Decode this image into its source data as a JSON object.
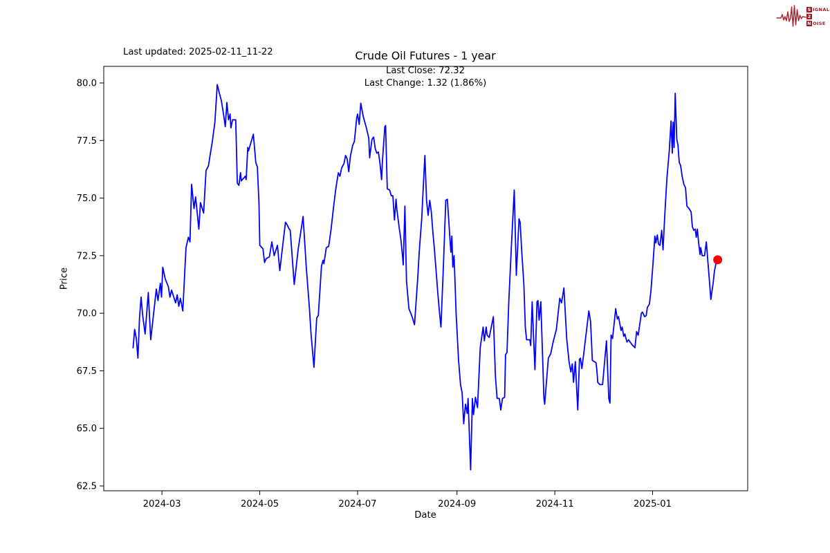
{
  "header": {
    "last_updated": "Last updated: 2025-02-11_11-22"
  },
  "logo": {
    "row1_boxed": "S",
    "row1_rest": "IGNAL",
    "row2_boxed": "2",
    "row2_rest": "",
    "row3_boxed": "N",
    "row3_rest": "OISE",
    "color": "#a01828",
    "waveform_color": "#b22535"
  },
  "chart_data": {
    "type": "line",
    "title": "Crude Oil Futures - 1 year",
    "annotation_line1": "Last Close: 72.32",
    "annotation_line2": "Last Change: 1.32 (1.86%)",
    "xlabel": "Date",
    "ylabel": "Price",
    "last_close": 72.32,
    "last_change": 1.32,
    "last_change_pct": "1.86%",
    "grid": false,
    "legend": null,
    "line_color": "#0000ff",
    "marker_color": "#ff0000",
    "x_unit": "days since 2024-02-12",
    "x_start_date": "2024-02-12",
    "x_end_date": "2025-02-11",
    "xlim": [
      -18.3,
      383.3
    ],
    "ylim": [
      62.29,
      80.72
    ],
    "y_ticks": [
      80.0,
      77.5,
      75.0,
      72.5,
      70.0,
      67.5,
      65.0,
      62.5
    ],
    "x_ticks": [
      {
        "day": 18,
        "label": "2024-03"
      },
      {
        "day": 79,
        "label": "2024-05"
      },
      {
        "day": 140,
        "label": "2024-07"
      },
      {
        "day": 202,
        "label": "2024-09"
      },
      {
        "day": 263,
        "label": "2024-11"
      },
      {
        "day": 324,
        "label": "2025-01"
      }
    ],
    "series": [
      {
        "name": "Crude Oil Futures",
        "points": [
          [
            0,
            68.5
          ],
          [
            1,
            69.3
          ],
          [
            2,
            68.9
          ],
          [
            3,
            68.05
          ],
          [
            4,
            69.8
          ],
          [
            5,
            70.7
          ],
          [
            6,
            69.9
          ],
          [
            7.5,
            69.1
          ],
          [
            9.5,
            70.9
          ],
          [
            11,
            68.85
          ],
          [
            14.5,
            71.05
          ],
          [
            15.5,
            70.55
          ],
          [
            17,
            71.3
          ],
          [
            17.7,
            70.7
          ],
          [
            18.5,
            72.0
          ],
          [
            20,
            71.5
          ],
          [
            22,
            71.15
          ],
          [
            23,
            70.7
          ],
          [
            24,
            71.0
          ],
          [
            26.5,
            70.45
          ],
          [
            27.5,
            70.8
          ],
          [
            28.5,
            70.3
          ],
          [
            29.5,
            70.65
          ],
          [
            31,
            70.1
          ],
          [
            33,
            72.85
          ],
          [
            34.5,
            73.3
          ],
          [
            35.5,
            73.1
          ],
          [
            36.5,
            75.6
          ],
          [
            38,
            74.55
          ],
          [
            39,
            75.05
          ],
          [
            41,
            73.65
          ],
          [
            42,
            74.8
          ],
          [
            44,
            74.35
          ],
          [
            45.5,
            76.2
          ],
          [
            47,
            76.4
          ],
          [
            48,
            76.85
          ],
          [
            49.5,
            77.5
          ],
          [
            51,
            78.3
          ],
          [
            52.5,
            79.93
          ],
          [
            54,
            79.5
          ],
          [
            55,
            79.25
          ],
          [
            56.5,
            78.6
          ],
          [
            57.5,
            78.1
          ],
          [
            58.5,
            79.15
          ],
          [
            59.5,
            78.4
          ],
          [
            60.5,
            78.65
          ],
          [
            61,
            78.05
          ],
          [
            62,
            78.4
          ],
          [
            64,
            78.4
          ],
          [
            65,
            75.65
          ],
          [
            66,
            75.55
          ],
          [
            67,
            76.1
          ],
          [
            67.5,
            75.75
          ],
          [
            70,
            75.95
          ],
          [
            70.5,
            75.8
          ],
          [
            71.5,
            77.2
          ],
          [
            72,
            77.05
          ],
          [
            75,
            77.77
          ],
          [
            76.5,
            76.55
          ],
          [
            77.5,
            76.35
          ],
          [
            78.5,
            74.8
          ],
          [
            79,
            72.95
          ],
          [
            81,
            72.8
          ],
          [
            82,
            72.2
          ],
          [
            83,
            72.37
          ],
          [
            85,
            72.45
          ],
          [
            86.5,
            73.1
          ],
          [
            88,
            72.5
          ],
          [
            90,
            72.95
          ],
          [
            91.5,
            71.85
          ],
          [
            95,
            73.95
          ],
          [
            96,
            73.85
          ],
          [
            97,
            73.7
          ],
          [
            98,
            73.6
          ],
          [
            100.5,
            71.25
          ],
          [
            103,
            72.8
          ],
          [
            106,
            74.2
          ],
          [
            108,
            72.0
          ],
          [
            110,
            70.2
          ],
          [
            111,
            69.1
          ],
          [
            112.8,
            67.65
          ],
          [
            114.5,
            69.8
          ],
          [
            115.5,
            69.9
          ],
          [
            117.5,
            72.05
          ],
          [
            118.5,
            72.3
          ],
          [
            119,
            72.15
          ],
          [
            120.5,
            72.85
          ],
          [
            122,
            72.9
          ],
          [
            123.5,
            73.65
          ],
          [
            125,
            74.6
          ],
          [
            126.5,
            75.45
          ],
          [
            128,
            76.1
          ],
          [
            129,
            75.95
          ],
          [
            130,
            76.3
          ],
          [
            131.5,
            76.5
          ],
          [
            132.5,
            76.85
          ],
          [
            133.5,
            76.7
          ],
          [
            134.5,
            76.15
          ],
          [
            135.5,
            76.8
          ],
          [
            137,
            77.3
          ],
          [
            138,
            77.45
          ],
          [
            139.5,
            78.5
          ],
          [
            140,
            78.65
          ],
          [
            141,
            78.2
          ],
          [
            142,
            79.12
          ],
          [
            143.5,
            78.55
          ],
          [
            144.5,
            78.3
          ],
          [
            145.5,
            78.05
          ],
          [
            147,
            77.6
          ],
          [
            147.5,
            76.75
          ],
          [
            149,
            77.55
          ],
          [
            150,
            77.65
          ],
          [
            151,
            77.15
          ],
          [
            152,
            76.95
          ],
          [
            153,
            77.0
          ],
          [
            154,
            76.5
          ],
          [
            155,
            75.8
          ],
          [
            155.5,
            76.6
          ],
          [
            157,
            78.1
          ],
          [
            157.5,
            78.15
          ],
          [
            158.5,
            75.4
          ],
          [
            160,
            75.35
          ],
          [
            161,
            75.1
          ],
          [
            162,
            75.1
          ],
          [
            163,
            74.05
          ],
          [
            164,
            74.95
          ],
          [
            164.5,
            74.5
          ],
          [
            166,
            73.7
          ],
          [
            167,
            73.2
          ],
          [
            168,
            72.5
          ],
          [
            168.5,
            72.1
          ],
          [
            169.5,
            74.65
          ],
          [
            170.5,
            71.4
          ],
          [
            172,
            70.2
          ],
          [
            174,
            69.85
          ],
          [
            175.5,
            69.5
          ],
          [
            177.5,
            71.5
          ],
          [
            178.5,
            72.7
          ],
          [
            180,
            74.1
          ],
          [
            181,
            75.5
          ],
          [
            182,
            76.85
          ],
          [
            183,
            74.9
          ],
          [
            184,
            74.25
          ],
          [
            185,
            74.9
          ],
          [
            186,
            74.4
          ],
          [
            187,
            73.5
          ],
          [
            188,
            72.7
          ],
          [
            189,
            71.8
          ],
          [
            190,
            70.9
          ],
          [
            191,
            70.1
          ],
          [
            192,
            69.4
          ],
          [
            193.5,
            72.0
          ],
          [
            195,
            74.9
          ],
          [
            196,
            74.95
          ],
          [
            197.6,
            73.25
          ],
          [
            198.2,
            72.65
          ],
          [
            198.8,
            73.35
          ],
          [
            199.4,
            72.0
          ],
          [
            200.2,
            72.5
          ],
          [
            201.5,
            69.95
          ],
          [
            203,
            67.95
          ],
          [
            204.2,
            66.9
          ],
          [
            205.2,
            66.55
          ],
          [
            206.2,
            65.2
          ],
          [
            207.3,
            66.05
          ],
          [
            208.4,
            65.65
          ],
          [
            208.9,
            66.3
          ],
          [
            210.5,
            63.2
          ],
          [
            211.6,
            66.3
          ],
          [
            212.3,
            65.6
          ],
          [
            213.5,
            66.35
          ],
          [
            214.8,
            65.9
          ],
          [
            216.5,
            68.5
          ],
          [
            218.3,
            69.4
          ],
          [
            219.1,
            68.8
          ],
          [
            220.2,
            69.4
          ],
          [
            220.8,
            69.05
          ],
          [
            222.1,
            68.95
          ],
          [
            224.7,
            69.85
          ],
          [
            226,
            67.25
          ],
          [
            227,
            66.3
          ],
          [
            228.4,
            66.3
          ],
          [
            229.3,
            65.8
          ],
          [
            230.4,
            66.3
          ],
          [
            231.7,
            66.35
          ],
          [
            232.3,
            68.2
          ],
          [
            233.2,
            68.3
          ],
          [
            234.3,
            70.5
          ],
          [
            236,
            73.0
          ],
          [
            237.7,
            75.35
          ],
          [
            239,
            71.65
          ],
          [
            240.7,
            74.1
          ],
          [
            241.4,
            73.95
          ],
          [
            242.4,
            72.65
          ],
          [
            243.7,
            71.25
          ],
          [
            244.6,
            69.4
          ],
          [
            245.4,
            68.85
          ],
          [
            247.4,
            68.85
          ],
          [
            248,
            68.6
          ],
          [
            248.9,
            70.5
          ],
          [
            249.7,
            69.05
          ],
          [
            250.6,
            67.55
          ],
          [
            251.9,
            70.5
          ],
          [
            252.5,
            70.55
          ],
          [
            253.2,
            69.7
          ],
          [
            254.3,
            70.5
          ],
          [
            256.2,
            66.3
          ],
          [
            256.7,
            66.05
          ],
          [
            259,
            68.05
          ],
          [
            260.5,
            68.25
          ],
          [
            261.8,
            68.7
          ],
          [
            264,
            69.3
          ],
          [
            266.1,
            70.65
          ],
          [
            267.2,
            70.45
          ],
          [
            268.7,
            71.1
          ],
          [
            270.4,
            68.9
          ],
          [
            271.9,
            67.9
          ],
          [
            273,
            67.45
          ],
          [
            273.9,
            67.8
          ],
          [
            274.7,
            67.0
          ],
          [
            275.8,
            67.9
          ],
          [
            277.3,
            65.8
          ],
          [
            278.4,
            68.0
          ],
          [
            279,
            68.05
          ],
          [
            279.9,
            67.6
          ],
          [
            281,
            68.2
          ],
          [
            284.2,
            70.1
          ],
          [
            285.3,
            69.65
          ],
          [
            286.4,
            67.95
          ],
          [
            288.7,
            67.85
          ],
          [
            289.2,
            67.55
          ],
          [
            289.8,
            67.0
          ],
          [
            291.1,
            66.9
          ],
          [
            292.8,
            66.9
          ],
          [
            295.2,
            68.8
          ],
          [
            296.7,
            66.3
          ],
          [
            297.4,
            66.1
          ],
          [
            298.1,
            69.05
          ],
          [
            299,
            68.9
          ],
          [
            301,
            70.2
          ],
          [
            302,
            69.75
          ],
          [
            302.7,
            69.85
          ],
          [
            304.3,
            69.25
          ],
          [
            305,
            69.4
          ],
          [
            306,
            69.0
          ],
          [
            306.7,
            69.1
          ],
          [
            308,
            68.75
          ],
          [
            309,
            68.85
          ],
          [
            311,
            68.65
          ],
          [
            313,
            68.5
          ],
          [
            314,
            69.2
          ],
          [
            315,
            69.05
          ],
          [
            317,
            70.0
          ],
          [
            317.7,
            70.05
          ],
          [
            319,
            69.85
          ],
          [
            320,
            69.9
          ],
          [
            320.7,
            70.25
          ],
          [
            322,
            70.4
          ],
          [
            323,
            71.0
          ],
          [
            324.3,
            72.2
          ],
          [
            325.4,
            73.35
          ],
          [
            326,
            73.05
          ],
          [
            326.9,
            73.4
          ],
          [
            327.7,
            73.0
          ],
          [
            328.6,
            72.95
          ],
          [
            329.7,
            73.6
          ],
          [
            330.5,
            72.75
          ],
          [
            331.6,
            74.25
          ],
          [
            332.9,
            75.85
          ],
          [
            334.4,
            77.05
          ],
          [
            335.5,
            78.35
          ],
          [
            336.3,
            76.95
          ],
          [
            336.8,
            78.3
          ],
          [
            337.4,
            77.2
          ],
          [
            338.1,
            79.55
          ],
          [
            339.1,
            77.55
          ],
          [
            339.8,
            77.3
          ],
          [
            340.6,
            76.55
          ],
          [
            341.5,
            76.4
          ],
          [
            342.4,
            75.95
          ],
          [
            343.5,
            75.6
          ],
          [
            344.5,
            75.45
          ],
          [
            345.4,
            74.65
          ],
          [
            346.7,
            74.55
          ],
          [
            348,
            74.4
          ],
          [
            348.8,
            73.75
          ],
          [
            349.7,
            73.6
          ],
          [
            350.6,
            73.65
          ],
          [
            351.2,
            73.3
          ],
          [
            351.9,
            73.65
          ],
          [
            352.7,
            73.05
          ],
          [
            353.6,
            72.55
          ],
          [
            354,
            72.85
          ],
          [
            354.9,
            72.5
          ],
          [
            356.4,
            72.5
          ],
          [
            357.5,
            73.1
          ],
          [
            358.8,
            71.95
          ],
          [
            359.6,
            71.25
          ],
          [
            360.3,
            70.6
          ],
          [
            361.8,
            71.35
          ],
          [
            362.6,
            71.85
          ],
          [
            363.5,
            72.15
          ],
          [
            364.6,
            72.32
          ]
        ]
      }
    ]
  }
}
